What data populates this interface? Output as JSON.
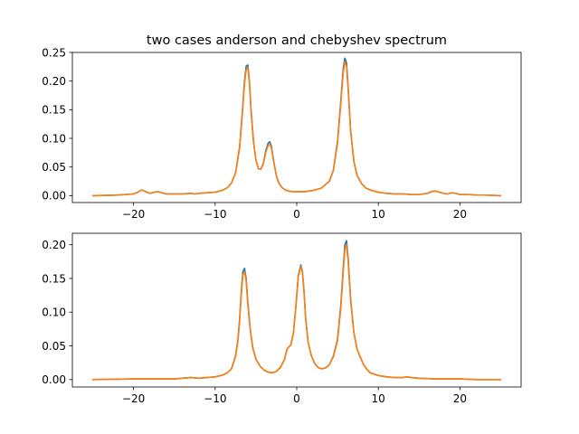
{
  "chart_data": [
    {
      "type": "line",
      "title": "two cases anderson and chebyshev spectrum",
      "xlim": [
        -27.5,
        27.5
      ],
      "ylim": [
        -0.012,
        0.25
      ],
      "xticks": [
        -20,
        -10,
        0,
        10,
        20
      ],
      "xtick_labels": [
        "−20",
        "−10",
        "0",
        "10",
        "20"
      ],
      "yticks": [
        0.0,
        0.05,
        0.1,
        0.15,
        0.2,
        0.25
      ],
      "ytick_labels": [
        "0.00",
        "0.05",
        "0.10",
        "0.15",
        "0.20",
        "0.25"
      ],
      "grid": false,
      "series": [
        {
          "color": "#1f77b4",
          "x": [
            -25,
            -22,
            -20,
            -19.5,
            -19,
            -18.5,
            -18,
            -17.5,
            -17,
            -16.5,
            -16,
            -15,
            -14,
            -13,
            -12.5,
            -12,
            -11,
            -10,
            -9,
            -8.5,
            -8,
            -7.5,
            -7,
            -6.7,
            -6.4,
            -6.2,
            -6.0,
            -5.8,
            -5.6,
            -5.3,
            -5.0,
            -4.7,
            -4.4,
            -4.1,
            -3.8,
            -3.5,
            -3.3,
            -3.1,
            -2.8,
            -2.5,
            -2.2,
            -1.8,
            -1.4,
            -1,
            -0.5,
            0,
            1,
            2,
            3,
            4,
            4.5,
            5.0,
            5.4,
            5.7,
            5.9,
            6.1,
            6.3,
            6.6,
            7.0,
            7.4,
            8.0,
            8.5,
            9,
            10,
            11,
            12,
            13,
            14,
            15,
            16,
            16.5,
            17,
            17.5,
            18,
            18.5,
            19,
            19.5,
            20,
            21,
            22,
            23,
            25
          ],
          "y": [
            0.0,
            0.001,
            0.003,
            0.006,
            0.01,
            0.007,
            0.004,
            0.006,
            0.007,
            0.005,
            0.003,
            0.003,
            0.003,
            0.004,
            0.003,
            0.004,
            0.005,
            0.006,
            0.01,
            0.014,
            0.022,
            0.04,
            0.085,
            0.14,
            0.2,
            0.226,
            0.228,
            0.2,
            0.15,
            0.095,
            0.062,
            0.047,
            0.046,
            0.056,
            0.078,
            0.092,
            0.094,
            0.086,
            0.058,
            0.035,
            0.022,
            0.014,
            0.01,
            0.008,
            0.007,
            0.007,
            0.007,
            0.009,
            0.013,
            0.025,
            0.045,
            0.095,
            0.165,
            0.222,
            0.24,
            0.232,
            0.19,
            0.115,
            0.06,
            0.035,
            0.02,
            0.013,
            0.01,
            0.006,
            0.004,
            0.003,
            0.003,
            0.002,
            0.002,
            0.004,
            0.007,
            0.008,
            0.006,
            0.004,
            0.003,
            0.005,
            0.004,
            0.002,
            0.002,
            0.001,
            0.001,
            0.0
          ]
        },
        {
          "color": "#ff7f0e",
          "x": [
            -25,
            -22,
            -20,
            -19.5,
            -19,
            -18.5,
            -18,
            -17.5,
            -17,
            -16.5,
            -16,
            -15,
            -14,
            -13,
            -12.5,
            -12,
            -11,
            -10,
            -9,
            -8.5,
            -8,
            -7.5,
            -7,
            -6.7,
            -6.4,
            -6.2,
            -6.0,
            -5.8,
            -5.6,
            -5.3,
            -5.0,
            -4.7,
            -4.4,
            -4.1,
            -3.8,
            -3.5,
            -3.3,
            -3.1,
            -2.8,
            -2.5,
            -2.2,
            -1.8,
            -1.4,
            -1,
            -0.5,
            0,
            1,
            2,
            3,
            4,
            4.5,
            5.0,
            5.4,
            5.7,
            5.9,
            6.1,
            6.3,
            6.6,
            7.0,
            7.4,
            8.0,
            8.5,
            9,
            10,
            11,
            12,
            13,
            14,
            15,
            16,
            16.5,
            17,
            17.5,
            18,
            18.5,
            19,
            19.5,
            20,
            21,
            22,
            23,
            25
          ],
          "y": [
            0.0,
            0.001,
            0.003,
            0.006,
            0.01,
            0.007,
            0.004,
            0.006,
            0.007,
            0.005,
            0.003,
            0.003,
            0.003,
            0.004,
            0.003,
            0.004,
            0.005,
            0.006,
            0.01,
            0.014,
            0.022,
            0.04,
            0.083,
            0.136,
            0.195,
            0.22,
            0.223,
            0.196,
            0.147,
            0.094,
            0.062,
            0.047,
            0.046,
            0.055,
            0.075,
            0.088,
            0.09,
            0.083,
            0.057,
            0.035,
            0.022,
            0.014,
            0.01,
            0.008,
            0.007,
            0.007,
            0.007,
            0.009,
            0.013,
            0.025,
            0.044,
            0.092,
            0.16,
            0.215,
            0.234,
            0.226,
            0.186,
            0.113,
            0.06,
            0.035,
            0.02,
            0.013,
            0.01,
            0.006,
            0.004,
            0.003,
            0.003,
            0.002,
            0.002,
            0.004,
            0.007,
            0.008,
            0.006,
            0.004,
            0.003,
            0.005,
            0.004,
            0.002,
            0.002,
            0.001,
            0.001,
            0.0
          ]
        }
      ]
    },
    {
      "type": "line",
      "title": "",
      "xlim": [
        -27.5,
        27.5
      ],
      "ylim": [
        -0.011,
        0.217
      ],
      "xticks": [
        -20,
        -10,
        0,
        10,
        20
      ],
      "xtick_labels": [
        "−20",
        "−10",
        "0",
        "10",
        "20"
      ],
      "yticks": [
        0.0,
        0.05,
        0.1,
        0.15,
        0.2
      ],
      "ytick_labels": [
        "0.00",
        "0.05",
        "0.10",
        "0.15",
        "0.20"
      ],
      "grid": false,
      "series": [
        {
          "color": "#1f77b4",
          "x": [
            -25,
            -20,
            -15,
            -14,
            -13,
            -12,
            -11,
            -10,
            -9,
            -8.5,
            -8,
            -7.5,
            -7.2,
            -7.0,
            -6.8,
            -6.6,
            -6.4,
            -6.2,
            -6.0,
            -5.7,
            -5.4,
            -5.0,
            -4.5,
            -4,
            -3.5,
            -3,
            -2.5,
            -2,
            -1.5,
            -1.2,
            -1.0,
            -0.7,
            -0.4,
            -0.1,
            0.2,
            0.5,
            0.7,
            0.9,
            1.1,
            1.4,
            1.8,
            2.2,
            2.6,
            3.0,
            3.5,
            4.0,
            4.5,
            5.0,
            5.4,
            5.7,
            5.9,
            6.1,
            6.3,
            6.6,
            7.0,
            7.4,
            7.8,
            8.2,
            8.6,
            9,
            10,
            11,
            12,
            13,
            13.5,
            14,
            15,
            17,
            19,
            20,
            22,
            25
          ],
          "y": [
            0.0,
            0.001,
            0.001,
            0.002,
            0.003,
            0.002,
            0.003,
            0.004,
            0.007,
            0.01,
            0.016,
            0.035,
            0.06,
            0.09,
            0.13,
            0.16,
            0.165,
            0.15,
            0.115,
            0.075,
            0.048,
            0.03,
            0.02,
            0.014,
            0.011,
            0.01,
            0.012,
            0.018,
            0.03,
            0.045,
            0.048,
            0.052,
            0.07,
            0.11,
            0.155,
            0.17,
            0.16,
            0.13,
            0.09,
            0.055,
            0.035,
            0.024,
            0.018,
            0.016,
            0.017,
            0.022,
            0.035,
            0.06,
            0.11,
            0.165,
            0.2,
            0.206,
            0.18,
            0.12,
            0.07,
            0.045,
            0.033,
            0.022,
            0.015,
            0.01,
            0.006,
            0.004,
            0.003,
            0.003,
            0.004,
            0.003,
            0.002,
            0.001,
            0.001,
            0.001,
            0.0,
            0.0
          ]
        },
        {
          "color": "#ff7f0e",
          "x": [
            -25,
            -20,
            -15,
            -14,
            -13,
            -12,
            -11,
            -10,
            -9,
            -8.5,
            -8,
            -7.5,
            -7.2,
            -7.0,
            -6.8,
            -6.6,
            -6.4,
            -6.2,
            -6.0,
            -5.7,
            -5.4,
            -5.0,
            -4.5,
            -4,
            -3.5,
            -3,
            -2.5,
            -2,
            -1.5,
            -1.2,
            -1.0,
            -0.7,
            -0.4,
            -0.1,
            0.2,
            0.5,
            0.7,
            0.9,
            1.1,
            1.4,
            1.8,
            2.2,
            2.6,
            3.0,
            3.5,
            4.0,
            4.5,
            5.0,
            5.4,
            5.7,
            5.9,
            6.1,
            6.3,
            6.6,
            7.0,
            7.4,
            7.8,
            8.2,
            8.6,
            9,
            10,
            11,
            12,
            13,
            13.5,
            14,
            15,
            17,
            19,
            20,
            22,
            25
          ],
          "y": [
            0.0,
            0.001,
            0.001,
            0.002,
            0.003,
            0.002,
            0.003,
            0.004,
            0.007,
            0.01,
            0.016,
            0.034,
            0.058,
            0.087,
            0.125,
            0.155,
            0.16,
            0.146,
            0.112,
            0.074,
            0.048,
            0.03,
            0.02,
            0.014,
            0.011,
            0.01,
            0.012,
            0.018,
            0.03,
            0.045,
            0.048,
            0.052,
            0.07,
            0.108,
            0.153,
            0.168,
            0.158,
            0.128,
            0.089,
            0.055,
            0.035,
            0.024,
            0.018,
            0.016,
            0.017,
            0.022,
            0.034,
            0.058,
            0.106,
            0.16,
            0.193,
            0.2,
            0.176,
            0.118,
            0.07,
            0.045,
            0.033,
            0.022,
            0.015,
            0.01,
            0.006,
            0.004,
            0.003,
            0.003,
            0.004,
            0.003,
            0.002,
            0.001,
            0.001,
            0.001,
            0.0,
            0.0
          ]
        }
      ]
    }
  ]
}
